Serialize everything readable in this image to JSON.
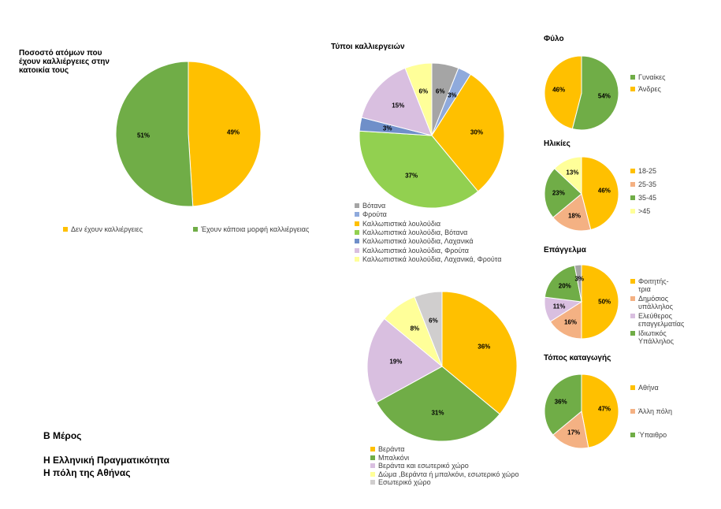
{
  "heading": {
    "part": "Β Μέρος",
    "lines": [
      "Η Ελληνική Πραγματικότητα",
      "Η πόλη της Αθήνας"
    ]
  },
  "chart_data": [
    {
      "type": "pie",
      "title": "Ποσοστό ατόμων που έχουν καλλιέργειες στην κατοικία τους",
      "categories": [
        "Δεν έχουν καλλιέργειες",
        "Έχουν κάποια μορφή καλλιέργειας"
      ],
      "values": [
        49,
        51
      ],
      "value_labels": [
        "49%",
        "51%"
      ],
      "colors": [
        "#ffc000",
        "#70ad47"
      ]
    },
    {
      "type": "pie",
      "title": "Τύποι καλλιεργειών",
      "categories": [
        "Βότανα",
        "Φρούτα",
        "Καλλωπιστικά λουλούδια",
        "Καλλωπιστικά λουλούδια, Βότανα",
        "Καλλωπιστικά λουλούδια, Λαχανικά",
        "Καλλωπιστικά λουλούδια, Φρούτα",
        "Καλλωπιστικά λουλούδια, Λαχανικά, Φρούτα"
      ],
      "values": [
        6,
        3,
        30,
        37,
        3,
        15,
        6
      ],
      "value_labels": [
        "6%",
        "3%",
        "30%",
        "37%",
        "3%",
        "15%",
        "6%"
      ],
      "colors": [
        "#a5a5a5",
        "#8faadc",
        "#ffc000",
        "#92d050",
        "#6f8fc9",
        "#d9bfe0",
        "#ffff99"
      ]
    },
    {
      "type": "pie",
      "title": "Φύλο",
      "categories": [
        "Γυναίκες",
        "Άνδρες"
      ],
      "values": [
        54,
        46
      ],
      "value_labels": [
        "54%",
        "46%"
      ],
      "colors": [
        "#70ad47",
        "#ffc000"
      ]
    },
    {
      "type": "pie",
      "title": "Ηλικίες",
      "categories": [
        "18-25",
        "25-35",
        "35-45",
        ">45"
      ],
      "values": [
        46,
        18,
        23,
        13
      ],
      "value_labels": [
        "46%",
        "18%",
        "23%",
        "13%"
      ],
      "colors": [
        "#ffc000",
        "#f4b183",
        "#70ad47",
        "#ffff99"
      ]
    },
    {
      "type": "pie",
      "title": "Επάγγελμα",
      "categories": [
        "Φοιτητής-τρια",
        "Δημόσιος υπάλληλος",
        "Ελεύθερος επαγγελματίας",
        "Ιδιωτικός Υπάλληλος",
        null
      ],
      "values": [
        50,
        16,
        11,
        20,
        3
      ],
      "value_labels": [
        "50%",
        "16%",
        "11%",
        "20%",
        "3%"
      ],
      "colors": [
        "#ffc000",
        "#f4b183",
        "#d9bfe0",
        "#70ad47",
        "#a5a5a5"
      ]
    },
    {
      "type": "pie",
      "title": "Τόπος καταγωγής",
      "categories": [
        "Αθήνα",
        "Άλλη πόλη",
        "Ύπαιθρο"
      ],
      "values": [
        47,
        17,
        36
      ],
      "value_labels": [
        "47%",
        "17%",
        "36%"
      ],
      "colors": [
        "#ffc000",
        "#f4b183",
        "#70ad47"
      ]
    },
    {
      "type": "pie",
      "categories": [
        "Βεράντα",
        "Μπαλκόνι",
        "Βεράντα και εσωτερικό χώρο",
        "Δώμα ,Βεράντα ή μπαλκόνι, εσωτερικό χώρο",
        "Εσωτερικό χώρο"
      ],
      "values": [
        36,
        31,
        19,
        8,
        6
      ],
      "value_labels": [
        "36%",
        "31%",
        "19%",
        "8%",
        "6%"
      ],
      "colors": [
        "#ffc000",
        "#70ad47",
        "#d9bfe0",
        "#ffff99",
        "#d0cece"
      ]
    }
  ]
}
